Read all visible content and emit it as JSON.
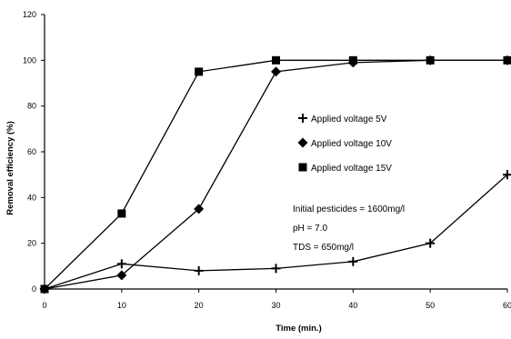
{
  "chart_data": {
    "type": "line",
    "xlabel": "Time (min.)",
    "ylabel": "Removal efficiency (%)",
    "xlim": [
      0,
      60
    ],
    "ylim": [
      0,
      120
    ],
    "x_ticks": [
      0,
      10,
      20,
      30,
      40,
      50,
      60
    ],
    "y_ticks": [
      0,
      20,
      40,
      60,
      80,
      100,
      120
    ],
    "x_tick_labels": [
      "0",
      "10",
      "20",
      "30",
      "40",
      "50",
      "60"
    ],
    "y_tick_labels": [
      "0",
      "20",
      "40",
      "60",
      "80",
      "100",
      "120"
    ],
    "grid": false,
    "legend_position": "center-right",
    "series": [
      {
        "name": "Applied voltage 5V",
        "marker": "cross",
        "x": [
          0,
          10,
          20,
          30,
          40,
          50,
          60
        ],
        "y": [
          0,
          11,
          8,
          9,
          12,
          20,
          50
        ]
      },
      {
        "name": "Applied voltage 10V",
        "marker": "diamond",
        "x": [
          0,
          10,
          20,
          30,
          40,
          50,
          60
        ],
        "y": [
          0,
          6,
          35,
          95,
          99,
          100,
          100
        ]
      },
      {
        "name": "Applied voltage 15V",
        "marker": "square",
        "x": [
          0,
          10,
          20,
          30,
          40,
          50,
          60
        ],
        "y": [
          0,
          33,
          95,
          100,
          100,
          100,
          100
        ]
      }
    ],
    "annotations": [
      "Initial pesticides = 1600mg/l",
      "pH = 7.0",
      "TDS = 650mg/l"
    ]
  }
}
